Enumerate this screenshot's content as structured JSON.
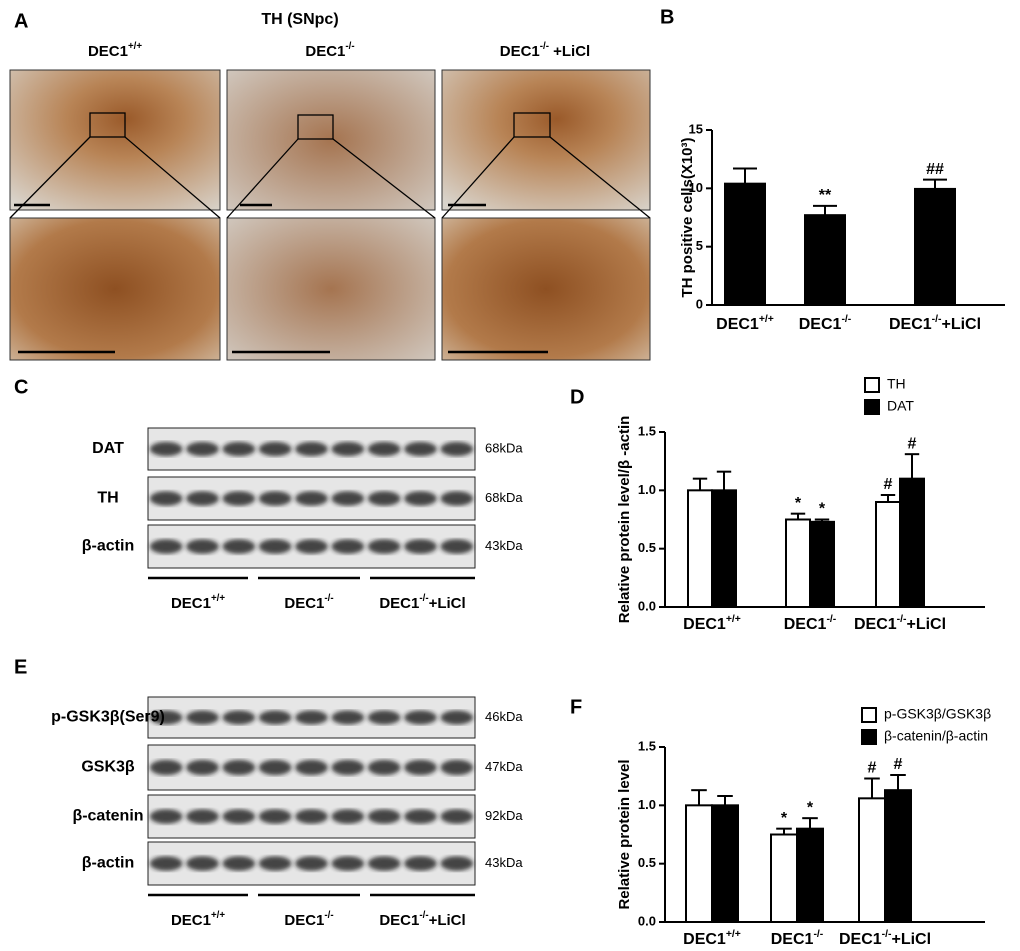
{
  "panel_letters": [
    "A",
    "B",
    "C",
    "D",
    "E",
    "F"
  ],
  "panel_a": {
    "title": "TH (SNpc)",
    "columns": [
      "DEC1+/+",
      "DEC1-/-",
      "DEC1-/- +LiCl"
    ]
  },
  "blot_c": {
    "rows": [
      "DAT",
      "TH",
      "β-actin"
    ],
    "sizes": [
      "68kDa",
      "68kDa",
      "43kDa"
    ],
    "groups": [
      "DEC1+/+",
      "DEC1-/-",
      "DEC1-/-+LiCl"
    ]
  },
  "blot_e": {
    "rows": [
      "p-GSK3β(Ser9)",
      "GSK3β",
      "β-catenin",
      "β-actin"
    ],
    "sizes": [
      "46kDa",
      "47kDa",
      "92kDa",
      "43kDa"
    ],
    "groups": [
      "DEC1+/+",
      "DEC1-/-",
      "DEC1-/-+LiCl"
    ]
  },
  "chart_data": [
    {
      "type": "bar",
      "ylabel": "TH positive cells(X10³)",
      "categories": [
        "DEC1+/+",
        "DEC1-/-",
        "DEC1-/-+LiCl"
      ],
      "values": [
        10.4,
        7.7,
        9.95
      ],
      "errors": [
        1.3,
        0.8,
        0.8
      ],
      "annotations": [
        null,
        "**",
        "##"
      ],
      "color": "#000000",
      "ylim": [
        0,
        15
      ],
      "yticks": [
        0,
        5,
        10,
        15
      ]
    },
    {
      "type": "bar",
      "ylabel": "Relative protein level/β -actin",
      "categories": [
        "DEC1+/+",
        "DEC1-/-",
        "DEC1-/-+LiCl"
      ],
      "series": [
        {
          "name": "TH",
          "color": "#ffffff",
          "values": [
            1.0,
            0.75,
            0.9
          ],
          "errors": [
            0.1,
            0.05,
            0.06
          ],
          "annotations": [
            null,
            "*",
            "#"
          ]
        },
        {
          "name": "DAT",
          "color": "#000000",
          "values": [
            1.0,
            0.73,
            1.1
          ],
          "errors": [
            0.16,
            0.02,
            0.21
          ],
          "annotations": [
            null,
            "*",
            "#"
          ]
        }
      ],
      "ylim": [
        0,
        1.5
      ],
      "yticks": [
        {
          "value": 0,
          "label": "0.0"
        },
        {
          "value": 0.5,
          "label": "0.5"
        },
        {
          "value": 1,
          "label": "1.0"
        },
        {
          "value": 1.5,
          "label": "1.5"
        }
      ]
    },
    {
      "type": "bar",
      "ylabel": "Relative protein level",
      "categories": [
        "DEC1+/+",
        "DEC1-/-",
        "DEC1-/-+LiCl"
      ],
      "series": [
        {
          "name": "p-GSK3β/GSK3β",
          "color": "#ffffff",
          "values": [
            1.0,
            0.75,
            1.06
          ],
          "errors": [
            0.13,
            0.05,
            0.17
          ],
          "annotations": [
            null,
            "*",
            "#"
          ]
        },
        {
          "name": "β-catenin/β-actin",
          "color": "#000000",
          "values": [
            1.0,
            0.8,
            1.13
          ],
          "errors": [
            0.08,
            0.09,
            0.13
          ],
          "annotations": [
            null,
            "*",
            "#"
          ]
        }
      ],
      "ylim": [
        0,
        1.5
      ],
      "yticks": [
        {
          "value": 0,
          "label": "0.0"
        },
        {
          "value": 0.5,
          "label": "0.5"
        },
        {
          "value": 1,
          "label": "1.0"
        },
        {
          "value": 1.5,
          "label": "1.5"
        }
      ]
    }
  ]
}
